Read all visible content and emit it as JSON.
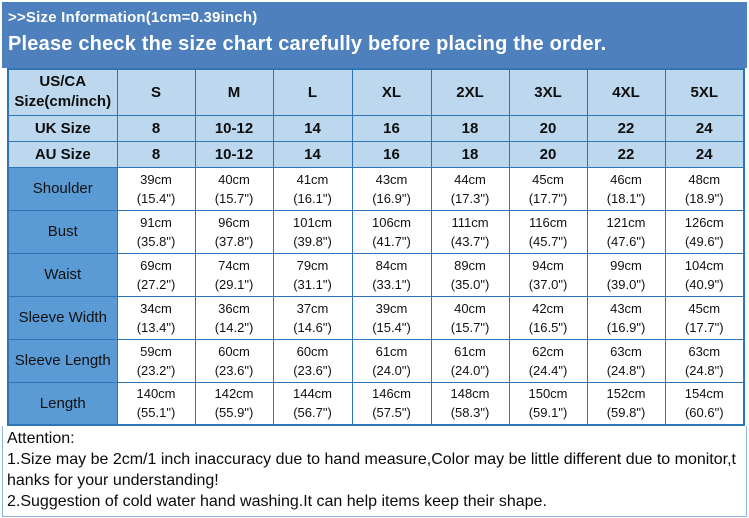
{
  "banner": {
    "title": ">>Size Information(1cm=0.39inch)",
    "subtitle": "Please check the size chart carefully before placing the order."
  },
  "colors": {
    "banner_bg": "#4d80bd",
    "header_bg": "#bdd7ee",
    "label_bg": "#5b9bd5",
    "grid_border": "#2e75b6",
    "attention_border": "#8db3e2",
    "banner_text": "#ffffff",
    "table_text": "#0d0d0d"
  },
  "table": {
    "corner_label": "US/CA Size(cm/inch)",
    "size_headers": [
      "S",
      "M",
      "L",
      "XL",
      "2XL",
      "3XL",
      "4XL",
      "5XL"
    ],
    "uk_row": {
      "label": "UK Size",
      "values": [
        "8",
        "10-12",
        "14",
        "16",
        "18",
        "20",
        "22",
        "24"
      ]
    },
    "au_row": {
      "label": "AU Size",
      "values": [
        "8",
        "10-12",
        "14",
        "16",
        "18",
        "20",
        "22",
        "24"
      ]
    },
    "measurement_rows": [
      {
        "label": "Shoulder",
        "cm": [
          "39cm",
          "40cm",
          "41cm",
          "43cm",
          "44cm",
          "45cm",
          "46cm",
          "48cm"
        ],
        "inch": [
          "(15.4\")",
          "(15.7\")",
          "(16.1\")",
          "(16.9\")",
          "(17.3\")",
          "(17.7\")",
          "(18.1\")",
          "(18.9\")"
        ]
      },
      {
        "label": "Bust",
        "cm": [
          "91cm",
          "96cm",
          "101cm",
          "106cm",
          "111cm",
          "116cm",
          "121cm",
          "126cm"
        ],
        "inch": [
          "(35.8\")",
          "(37.8\")",
          "(39.8\")",
          "(41.7\")",
          "(43.7\")",
          "(45.7\")",
          "(47.6\")",
          "(49.6\")"
        ]
      },
      {
        "label": "Waist",
        "cm": [
          "69cm",
          "74cm",
          "79cm",
          "84cm",
          "89cm",
          "94cm",
          "99cm",
          "104cm"
        ],
        "inch": [
          "(27.2\")",
          "(29.1\")",
          "(31.1\")",
          "(33.1\")",
          "(35.0\")",
          "(37.0\")",
          "(39.0\")",
          "(40.9\")"
        ]
      },
      {
        "label": "Sleeve Width",
        "cm": [
          "34cm",
          "36cm",
          "37cm",
          "39cm",
          "40cm",
          "42cm",
          "43cm",
          "45cm"
        ],
        "inch": [
          "(13.4\")",
          "(14.2\")",
          "(14.6\")",
          "(15.4\")",
          "(15.7\")",
          "(16.5\")",
          "(16.9\")",
          "(17.7\")"
        ]
      },
      {
        "label": "Sleeve Length",
        "cm": [
          "59cm",
          "60cm",
          "60cm",
          "61cm",
          "61cm",
          "62cm",
          "63cm",
          "63cm"
        ],
        "inch": [
          "(23.2\")",
          "(23.6\")",
          "(23.6\")",
          "(24.0\")",
          "(24.0\")",
          "(24.4\")",
          "(24.8\")",
          "(24.8\")"
        ]
      },
      {
        "label": "Length",
        "cm": [
          "140cm",
          "142cm",
          "144cm",
          "146cm",
          "148cm",
          "150cm",
          "152cm",
          "154cm"
        ],
        "inch": [
          "(55.1\")",
          "(55.9\")",
          "(56.7\")",
          "(57.5\")",
          "(58.3\")",
          "(59.1\")",
          "(59.8\")",
          "(60.6\")"
        ]
      }
    ]
  },
  "attention": {
    "heading": "Attention:",
    "lines": [
      "1.Size may be 2cm/1 inch inaccuracy due to hand measure,Color may be little different due to monitor,t",
      "hanks for your understanding!",
      "2.Suggestion of cold water hand washing.It can help items keep their shape."
    ]
  }
}
